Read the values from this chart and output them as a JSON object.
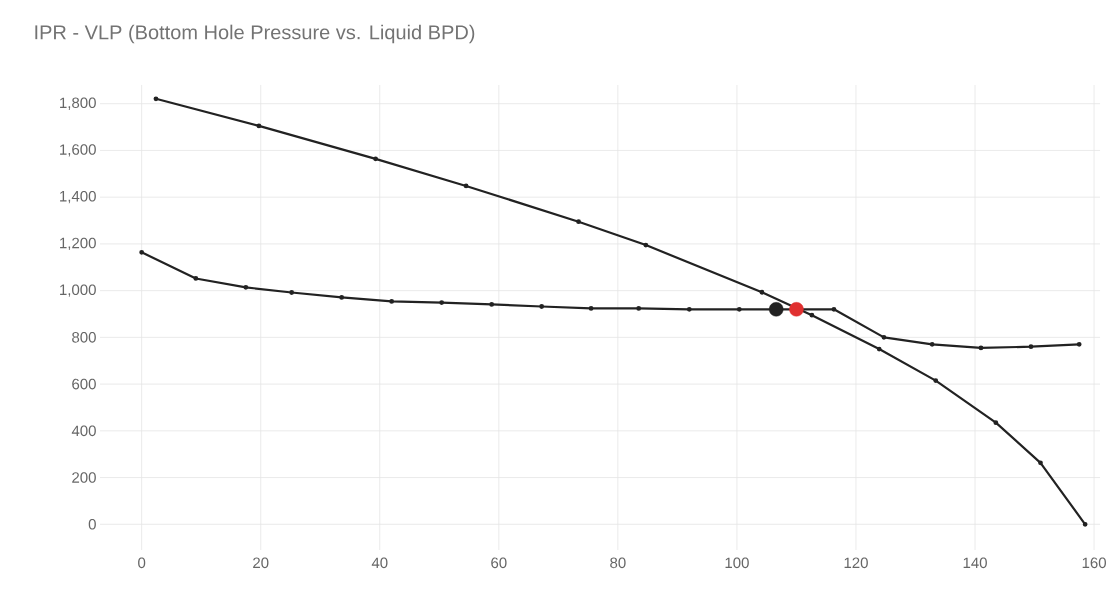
{
  "chart_data": {
    "type": "line",
    "title": "IPR - VLP (Bottom Hole Pressure vs. Liquid BPD)",
    "xlim": [
      -7,
      161
    ],
    "ylim": [
      -110,
      1880
    ],
    "xticks": [
      0,
      20,
      40,
      60,
      80,
      100,
      120,
      140,
      160
    ],
    "yticks": [
      0,
      200,
      400,
      600,
      800,
      {
        "value": 1000,
        "label": "1,000"
      },
      {
        "value": 1200,
        "label": "1,200"
      },
      {
        "value": 1400,
        "label": "1,400"
      },
      {
        "value": 1600,
        "label": "1,600"
      },
      {
        "value": 1800,
        "label": "1,800"
      }
    ],
    "grid": true,
    "marker": "circle",
    "line_style": "solid",
    "series": [
      {
        "color": "#222222",
        "x": [
          2.4,
          19.7,
          39.3,
          54.5,
          73.4,
          84.7,
          104.2,
          112.6,
          123.9,
          133.4,
          143.5,
          151,
          158.5
        ],
        "values": [
          1821,
          1705,
          1564,
          1448,
          1295,
          1195,
          993,
          895,
          750,
          615,
          435,
          263,
          0
        ]
      },
      {
        "color": "#222222",
        "x": [
          0,
          9.1,
          17.5,
          25.2,
          33.6,
          42,
          50.4,
          58.8,
          67.2,
          75.5,
          83.5,
          92,
          100.4,
          116.3,
          124.7,
          132.8,
          141,
          149.4,
          157.5
        ],
        "values": [
          1164,
          1052,
          1014,
          992,
          971,
          954,
          949,
          941,
          932,
          924,
          924,
          920,
          920,
          920,
          800,
          770,
          755,
          760,
          770
        ]
      },
      {
        "type": "scatter",
        "color": "#222222",
        "x": [
          106.6
        ],
        "values": [
          920
        ]
      },
      {
        "type": "scatter",
        "color": "#e03030",
        "x": [
          110
        ],
        "values": [
          920
        ]
      }
    ]
  }
}
